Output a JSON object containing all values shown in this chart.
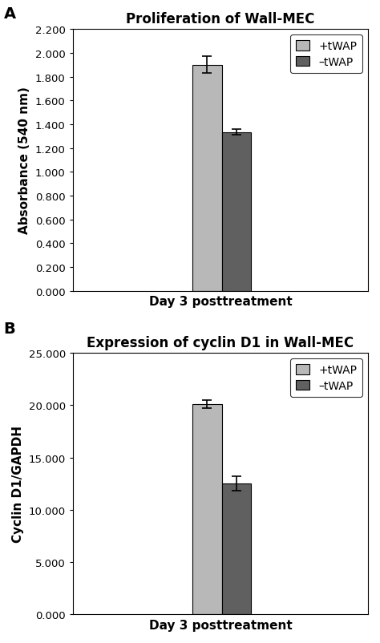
{
  "panel_A": {
    "title": "Proliferation of Wall-MEC",
    "xlabel": "Day 3 posttreatment",
    "ylabel": "Absorbance (540 nm)",
    "bar1_label": "+tWAP",
    "bar2_label": "–tWAP",
    "bar1_value": 1.9,
    "bar2_value": 1.335,
    "bar1_err": 0.07,
    "bar2_err": 0.025,
    "bar1_color": "#b8b8b8",
    "bar2_color": "#606060",
    "ylim": [
      0.0,
      2.2
    ],
    "yticks": [
      0.0,
      0.2,
      0.4,
      0.6,
      0.8,
      1.0,
      1.2,
      1.4,
      1.6,
      1.8,
      2.0,
      2.2
    ],
    "ytick_labels": [
      "0.000",
      "0.200",
      "0.400",
      "0.600",
      "0.800",
      "1.000",
      "1.200",
      "1.400",
      "1.600",
      "1.800",
      "2.000",
      "2.200"
    ],
    "panel_label": "A"
  },
  "panel_B": {
    "title": "Expression of cyclin D1 in Wall-MEC",
    "xlabel": "Day 3 posttreatment",
    "ylabel": "Cyclin D1/GAPDH",
    "bar1_label": "+tWAP",
    "bar2_label": "–tWAP",
    "bar1_value": 20.1,
    "bar2_value": 12.5,
    "bar1_err": 0.4,
    "bar2_err": 0.7,
    "bar1_color": "#b8b8b8",
    "bar2_color": "#606060",
    "ylim": [
      0.0,
      25.0
    ],
    "yticks": [
      0.0,
      5.0,
      10.0,
      15.0,
      20.0,
      25.0
    ],
    "ytick_labels": [
      "0.000",
      "5.000",
      "10.000",
      "15.000",
      "20.000",
      "25.000"
    ],
    "panel_label": "B"
  },
  "legend_fontsize": 10,
  "title_fontsize": 12,
  "axis_label_fontsize": 11,
  "tick_fontsize": 9.5,
  "bar_width": 0.22,
  "bar_x1": 1.0,
  "bar_x2": 1.22,
  "xlim": [
    0.0,
    2.2
  ]
}
